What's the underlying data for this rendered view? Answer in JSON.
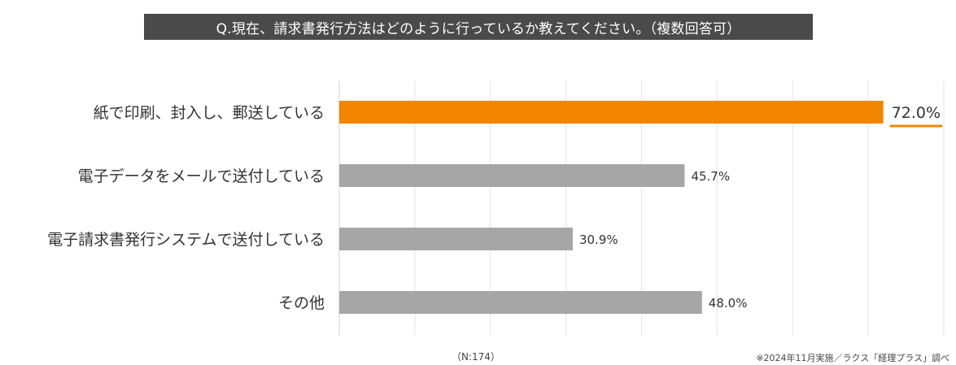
{
  "title": "Q.現在、請求書発行方法はどのように行っているか教えてください。（複数回答可）",
  "sample_size": "（N:174）",
  "source_note": "※2024年11月実施／ラクス「経理プラス」調べ",
  "colors": {
    "highlight": "#f28500",
    "bar": "#a6a6a6",
    "grid": "#e3e3e3",
    "title_bg": "#4a4a4a"
  },
  "chart_data": {
    "type": "bar",
    "orientation": "horizontal",
    "categories": [
      "紙で印刷、封入し、郵送している",
      "電子データをメールで送付している",
      "電子請求書発行システムで送付している",
      "その他"
    ],
    "values": [
      72.0,
      45.7,
      30.9,
      48.0
    ],
    "value_labels": [
      "72.0%",
      "45.7%",
      "30.9%",
      "48.0%"
    ],
    "highlight_index": 0,
    "xlim": [
      0,
      80
    ],
    "grid": true,
    "legend": false
  }
}
